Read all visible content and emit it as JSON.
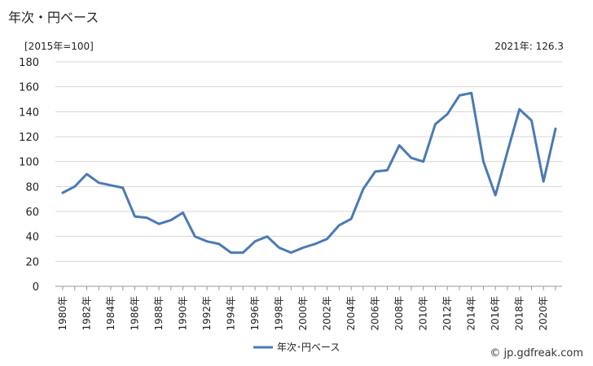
{
  "page": {
    "title": "年次・円ベース",
    "unit_note": "[2015年=100]",
    "latest_note": "2021年: 126.3",
    "credit": "© jp.gdfreak.com"
  },
  "chart_data": {
    "type": "line",
    "title": "年次・円ベース",
    "xlabel": "",
    "ylabel": "",
    "ylim": [
      0,
      180
    ],
    "yticks": [
      0,
      20,
      40,
      60,
      80,
      100,
      120,
      140,
      160,
      180
    ],
    "x": [
      1980,
      1981,
      1982,
      1983,
      1984,
      1985,
      1986,
      1987,
      1988,
      1989,
      1990,
      1991,
      1992,
      1993,
      1994,
      1995,
      1996,
      1997,
      1998,
      1999,
      2000,
      2001,
      2002,
      2003,
      2004,
      2005,
      2006,
      2007,
      2008,
      2009,
      2010,
      2011,
      2012,
      2013,
      2014,
      2015,
      2016,
      2017,
      2018,
      2019,
      2020,
      2021
    ],
    "x_tick_labels": [
      "1980年",
      "1982年",
      "1984年",
      "1986年",
      "1988年",
      "1990年",
      "1992年",
      "1994年",
      "1996年",
      "1998年",
      "2000年",
      "2002年",
      "2004年",
      "2006年",
      "2008年",
      "2010年",
      "2012年",
      "2014年",
      "2016年",
      "2018年",
      "2020年"
    ],
    "grid": "horizontal",
    "legend_position": "bottom",
    "series": [
      {
        "name": "年次･円ベース",
        "color": "#4a7ab5",
        "values": [
          75,
          80,
          90,
          83,
          81,
          79,
          56,
          55,
          50,
          53,
          59,
          40,
          36,
          34,
          27,
          27,
          36,
          40,
          31,
          27,
          31,
          34,
          38,
          49,
          54,
          78,
          92,
          93,
          113,
          103,
          100,
          130,
          138,
          153,
          155,
          100,
          73,
          108,
          142,
          133,
          84,
          126.3
        ]
      }
    ]
  }
}
